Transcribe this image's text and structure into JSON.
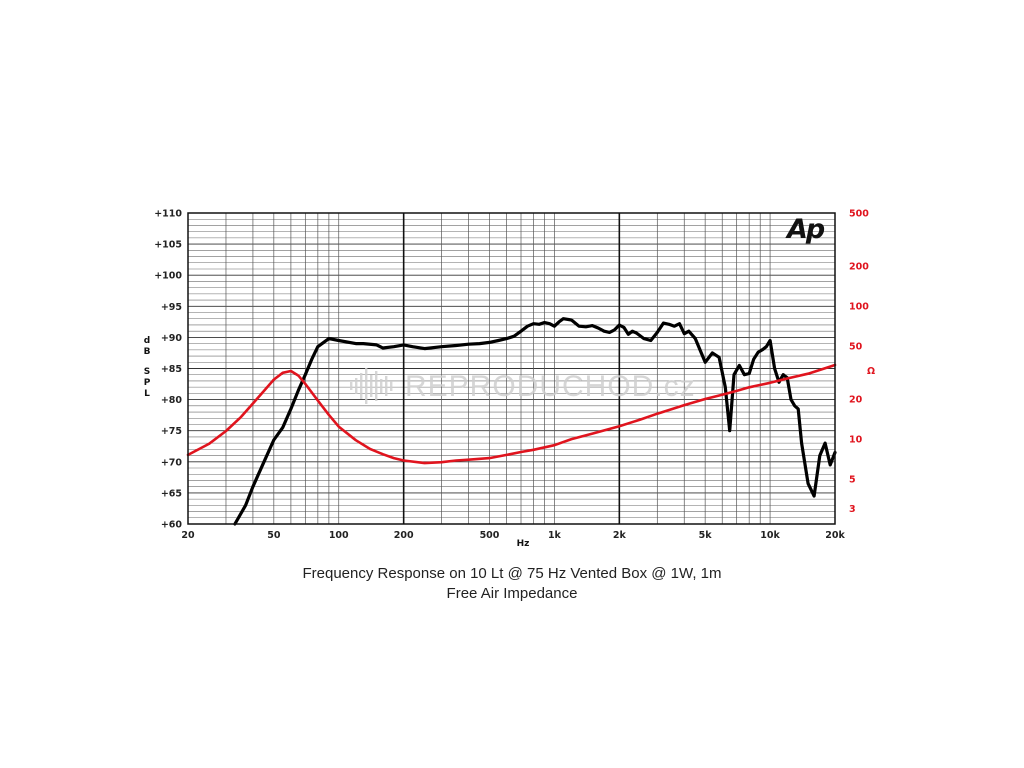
{
  "chart_data": {
    "type": "line",
    "x_scale": "log",
    "xlim": [
      20,
      20000
    ],
    "xlabel": "Hz",
    "x_ticks": [
      {
        "value": 20,
        "label": "20"
      },
      {
        "value": 50,
        "label": "50"
      },
      {
        "value": 100,
        "label": "100"
      },
      {
        "value": 200,
        "label": "200"
      },
      {
        "value": 500,
        "label": "500"
      },
      {
        "value": 1000,
        "label": "1k"
      },
      {
        "value": 2000,
        "label": "2k"
      },
      {
        "value": 5000,
        "label": "5k"
      },
      {
        "value": 10000,
        "label": "10k"
      },
      {
        "value": 20000,
        "label": "20k"
      }
    ],
    "ylabel": "dB SPL",
    "ylim": [
      60,
      110
    ],
    "y_ticks": [
      {
        "value": 110,
        "label": "+110"
      },
      {
        "value": 105,
        "label": "+105"
      },
      {
        "value": 100,
        "label": "+100"
      },
      {
        "value": 95,
        "label": "+95"
      },
      {
        "value": 90,
        "label": "+90"
      },
      {
        "value": 85,
        "label": "+85"
      },
      {
        "value": 80,
        "label": "+80"
      },
      {
        "value": 75,
        "label": "+75"
      },
      {
        "value": 70,
        "label": "+70"
      },
      {
        "value": 65,
        "label": "+65"
      },
      {
        "value": 60,
        "label": "+60"
      }
    ],
    "y2label": "Ω",
    "y2_scale": "log",
    "y2lim": [
      2.3,
      500
    ],
    "y2_ticks": [
      {
        "value": 500,
        "label": "500"
      },
      {
        "value": 200,
        "label": "200"
      },
      {
        "value": 100,
        "label": "100"
      },
      {
        "value": 50,
        "label": "50"
      },
      {
        "value": 20,
        "label": "20"
      },
      {
        "value": 10,
        "label": "10"
      },
      {
        "value": 5,
        "label": "5"
      },
      {
        "value": 3,
        "label": "3"
      }
    ],
    "grid": true,
    "colors": {
      "spl": "#000000",
      "impedance": "#e0141e",
      "right_axis": "#e0141e"
    },
    "series": [
      {
        "axis": "left",
        "x": [
          33,
          37,
          40,
          45,
          50,
          55,
          60,
          65,
          70,
          75,
          80,
          90,
          100,
          120,
          130,
          150,
          160,
          180,
          200,
          220,
          250,
          300,
          350,
          400,
          450,
          500,
          550,
          600,
          650,
          700,
          750,
          800,
          850,
          900,
          950,
          1000,
          1050,
          1100,
          1200,
          1300,
          1400,
          1500,
          1600,
          1700,
          1800,
          1900,
          2000,
          2100,
          2200,
          2300,
          2400,
          2600,
          2800,
          3000,
          3200,
          3400,
          3600,
          3800,
          4000,
          4200,
          4500,
          5000,
          5400,
          5800,
          6200,
          6500,
          6800,
          7200,
          7600,
          8000,
          8400,
          8800,
          9200,
          9600,
          10000,
          10500,
          11000,
          11500,
          12000,
          12500,
          13000,
          13500,
          14000,
          15000,
          16000,
          17000,
          18000,
          19000,
          20000
        ],
        "y": [
          60,
          63,
          66,
          70,
          73.5,
          75.5,
          78.5,
          81.5,
          84,
          86.5,
          88.5,
          89.8,
          89.5,
          89,
          89,
          88.8,
          88.3,
          88.5,
          88.8,
          88.5,
          88.2,
          88.5,
          88.7,
          88.9,
          89,
          89.2,
          89.5,
          89.8,
          90.2,
          91,
          91.8,
          92.2,
          92.1,
          92.4,
          92.2,
          91.8,
          92.5,
          93,
          92.8,
          91.8,
          91.7,
          91.9,
          91.5,
          91,
          90.8,
          91.2,
          92,
          91.6,
          90.5,
          91,
          90.7,
          89.8,
          89.5,
          90.8,
          92.3,
          92.1,
          91.8,
          92.2,
          90.6,
          91,
          89.8,
          86,
          87.5,
          86.8,
          82,
          75,
          84,
          85.5,
          84,
          84.2,
          86.5,
          87.6,
          88,
          88.5,
          89.5,
          85,
          82.8,
          84,
          83.5,
          80,
          79,
          78.5,
          73,
          66.5,
          64.5,
          71,
          73,
          69.5,
          71.5
        ]
      },
      {
        "axis": "right",
        "x": [
          20,
          25,
          30,
          35,
          40,
          45,
          50,
          55,
          60,
          65,
          70,
          80,
          90,
          100,
          120,
          140,
          160,
          180,
          200,
          250,
          300,
          350,
          400,
          500,
          600,
          700,
          800,
          1000,
          1200,
          1500,
          2000,
          2500,
          3000,
          4000,
          5000,
          6000,
          7000,
          8000,
          10000,
          12000,
          15000,
          18000,
          20000
        ],
        "y": [
          7.6,
          9.2,
          11.5,
          14.5,
          18.5,
          23,
          28,
          31.5,
          32.5,
          30,
          26,
          19.5,
          15.2,
          12.4,
          9.8,
          8.4,
          7.7,
          7.2,
          6.9,
          6.6,
          6.7,
          6.9,
          7,
          7.2,
          7.6,
          8,
          8.3,
          9,
          10,
          11,
          12.5,
          14,
          15.5,
          18,
          20,
          21.5,
          23,
          24.5,
          26.5,
          28.5,
          31,
          34,
          36
        ]
      }
    ],
    "annotations": {
      "logo": "Ap",
      "watermark": "REPRODUCHOD.cz"
    }
  },
  "caption": {
    "line1": "Frequency Response on 10 Lt @ 75 Hz Vented Box @ 1W, 1m",
    "line2": "Free Air Impedance"
  }
}
